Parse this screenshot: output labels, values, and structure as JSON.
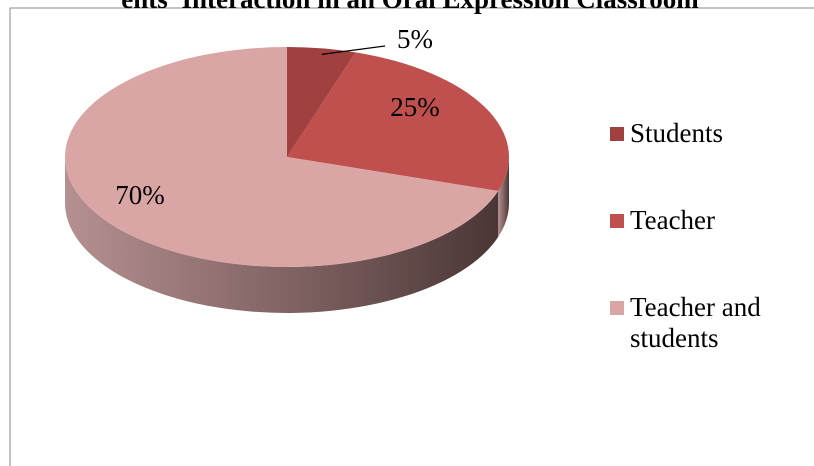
{
  "chart_data": {
    "type": "pie",
    "title": "ents’ Interaction in an Oral Expression Classroom",
    "categories": [
      "Students",
      "Teacher",
      "Teacher and students"
    ],
    "values": [
      5,
      25,
      70
    ],
    "value_labels": [
      "5%",
      "25%",
      "70%"
    ],
    "colors": [
      "#a0413f",
      "#c0504d",
      "#d9a6a5"
    ],
    "legend": "right"
  }
}
